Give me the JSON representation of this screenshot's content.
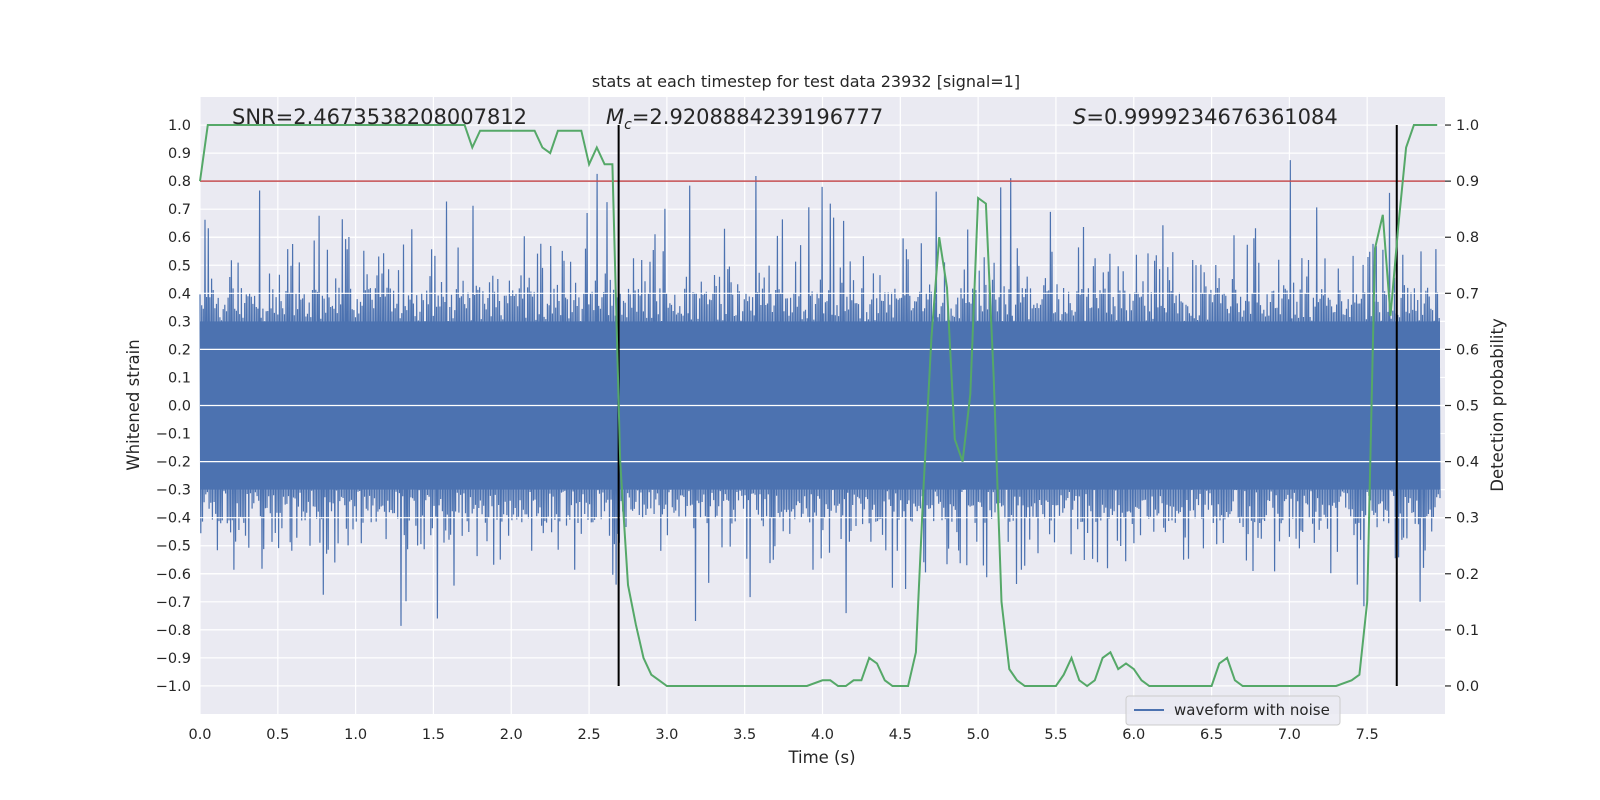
{
  "chart_data": {
    "type": "line",
    "title": "stats at each timestep for test data 23932 [signal=1]",
    "xlabel": "Time (s)",
    "ylabel": "Whitened strain",
    "y2label": "Detection probability",
    "xlim": [
      0.0,
      8.0
    ],
    "ylim": [
      -1.1,
      1.1
    ],
    "y2lim": [
      -0.05,
      1.05
    ],
    "xticks": [
      "0.0",
      "0.5",
      "1.0",
      "1.5",
      "2.0",
      "2.5",
      "3.0",
      "3.5",
      "4.0",
      "4.5",
      "5.0",
      "5.5",
      "6.0",
      "6.5",
      "7.0",
      "7.5"
    ],
    "xtick_values": [
      0.0,
      0.5,
      1.0,
      1.5,
      2.0,
      2.5,
      3.0,
      3.5,
      4.0,
      4.5,
      5.0,
      5.5,
      6.0,
      6.5,
      7.0,
      7.5
    ],
    "yticks": [
      "1.0",
      "0.9",
      "0.8",
      "0.7",
      "0.6",
      "0.5",
      "0.4",
      "0.3",
      "0.2",
      "0.1",
      "0.0",
      "−0.1",
      "−0.2",
      "−0.3",
      "−0.4",
      "−0.5",
      "−0.6",
      "−0.7",
      "−0.8",
      "−0.9",
      "−1.0"
    ],
    "ytick_values": [
      1.0,
      0.9,
      0.8,
      0.7,
      0.6,
      0.5,
      0.4,
      0.3,
      0.2,
      0.1,
      0.0,
      -0.1,
      -0.2,
      -0.3,
      -0.4,
      -0.5,
      -0.6,
      -0.7,
      -0.8,
      -0.9,
      -1.0
    ],
    "y2ticks": [
      "1.0",
      "0.9",
      "0.8",
      "0.7",
      "0.6",
      "0.5",
      "0.4",
      "0.3",
      "0.2",
      "0.1",
      "0.0"
    ],
    "y2tick_values": [
      1.0,
      0.9,
      0.8,
      0.7,
      0.6,
      0.5,
      0.4,
      0.3,
      0.2,
      0.1,
      0.0
    ],
    "annotations": {
      "snr": "SNR=2.4673538208007812",
      "mc_symbol": "M",
      "mc_sub": "c",
      "mc_value": "=2.9208884239196777",
      "s_symbol": "S",
      "s_value": "=0.9999234676361084"
    },
    "threshold": {
      "value": 0.9,
      "axis": "y2",
      "color": "#c44e52"
    },
    "vertical_lines": [
      2.69,
      7.69
    ],
    "legend": {
      "label": "waveform with noise",
      "location": "lower-right"
    },
    "colors": {
      "waveform": "#4c72b0",
      "probability": "#55a868",
      "threshold": "#c44e52",
      "marker": "#000000",
      "grid": "#ffffff",
      "background": "#eaeaf2"
    },
    "series": [
      {
        "name": "Detection probability",
        "axis": "y2",
        "x": [
          0.0,
          0.05,
          0.1,
          0.2,
          0.3,
          0.4,
          0.5,
          0.6,
          0.7,
          0.8,
          0.9,
          1.0,
          1.1,
          1.2,
          1.3,
          1.4,
          1.5,
          1.6,
          1.7,
          1.75,
          1.8,
          1.85,
          1.9,
          1.95,
          2.0,
          2.05,
          2.1,
          2.15,
          2.2,
          2.25,
          2.3,
          2.35,
          2.4,
          2.45,
          2.5,
          2.55,
          2.6,
          2.65,
          2.7,
          2.75,
          2.8,
          2.85,
          2.9,
          2.95,
          3.0,
          3.1,
          3.2,
          3.3,
          3.4,
          3.5,
          3.55,
          3.6,
          3.7,
          3.8,
          3.9,
          4.0,
          4.05,
          4.1,
          4.15,
          4.2,
          4.25,
          4.3,
          4.35,
          4.4,
          4.45,
          4.5,
          4.55,
          4.6,
          4.65,
          4.7,
          4.75,
          4.8,
          4.85,
          4.9,
          4.95,
          5.0,
          5.05,
          5.1,
          5.15,
          5.2,
          5.25,
          5.3,
          5.4,
          5.5,
          5.55,
          5.6,
          5.65,
          5.7,
          5.75,
          5.8,
          5.85,
          5.9,
          5.95,
          6.0,
          6.05,
          6.1,
          6.15,
          6.2,
          6.3,
          6.4,
          6.5,
          6.55,
          6.6,
          6.65,
          6.7,
          6.75,
          6.8,
          6.9,
          7.0,
          7.1,
          7.2,
          7.3,
          7.4,
          7.45,
          7.5,
          7.55,
          7.6,
          7.65,
          7.7,
          7.75,
          7.8,
          7.85,
          7.9,
          7.95
        ],
        "values": [
          0.9,
          1.0,
          1.0,
          1.0,
          1.0,
          1.0,
          1.0,
          1.0,
          1.0,
          1.0,
          1.0,
          1.0,
          1.0,
          1.0,
          1.0,
          1.0,
          1.0,
          1.0,
          1.0,
          0.96,
          0.99,
          0.99,
          0.99,
          0.99,
          0.99,
          0.99,
          0.99,
          0.99,
          0.96,
          0.95,
          0.99,
          0.99,
          0.99,
          0.99,
          0.93,
          0.96,
          0.93,
          0.93,
          0.4,
          0.18,
          0.11,
          0.05,
          0.02,
          0.01,
          0.0,
          0.0,
          0.0,
          0.0,
          0.0,
          0.0,
          0.0,
          0.0,
          0.0,
          0.0,
          0.0,
          0.01,
          0.01,
          0.0,
          0.0,
          0.01,
          0.01,
          0.05,
          0.04,
          0.01,
          0.0,
          0.0,
          0.0,
          0.06,
          0.36,
          0.62,
          0.8,
          0.71,
          0.44,
          0.4,
          0.52,
          0.87,
          0.86,
          0.55,
          0.15,
          0.03,
          0.01,
          0.0,
          0.0,
          0.0,
          0.02,
          0.05,
          0.01,
          0.0,
          0.01,
          0.05,
          0.06,
          0.03,
          0.04,
          0.03,
          0.01,
          0.0,
          0.0,
          0.0,
          0.0,
          0.0,
          0.0,
          0.04,
          0.05,
          0.01,
          0.0,
          0.0,
          0.0,
          0.0,
          0.0,
          0.0,
          0.0,
          0.0,
          0.01,
          0.02,
          0.15,
          0.78,
          0.84,
          0.66,
          0.82,
          0.96,
          1.0,
          1.0,
          1.0,
          1.0
        ]
      }
    ]
  }
}
